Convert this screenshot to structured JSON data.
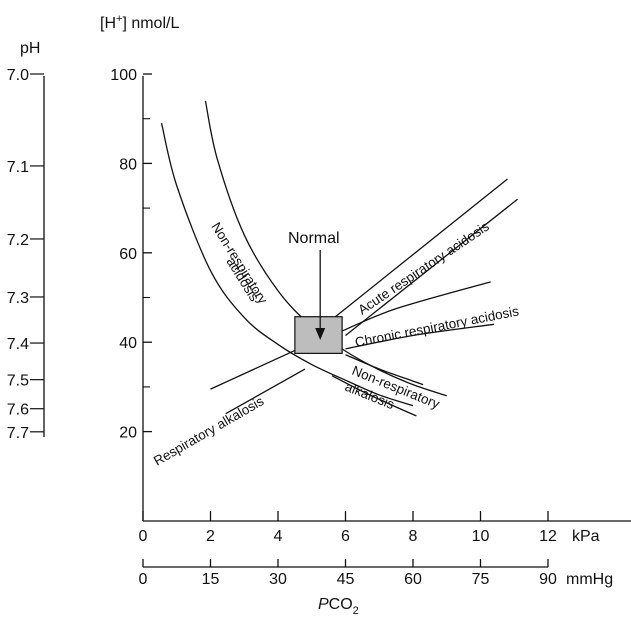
{
  "chart_data": {
    "type": "diagram-chart",
    "x_axes": {
      "primary": {
        "unit": "kPa",
        "range": [
          0,
          12
        ],
        "ticks": [
          0,
          2,
          4,
          6,
          8,
          10,
          12
        ],
        "labels": [
          "0",
          "2",
          "4",
          "6",
          "8",
          "10",
          "12"
        ]
      },
      "secondary": {
        "unit": "mmHg",
        "range": [
          0,
          90
        ],
        "ticks": [
          0,
          15,
          30,
          45,
          60,
          75,
          90
        ],
        "labels": [
          "0",
          "15",
          "30",
          "45",
          "60",
          "75",
          "90"
        ]
      },
      "title_main": "P",
      "title_rest": "CO",
      "title_sub": "2"
    },
    "y_axis": {
      "label_prefix": "[H",
      "label_sup": "+",
      "label_suffix": "] nmol/L",
      "range": [
        0,
        100
      ],
      "ticks": [
        20,
        40,
        60,
        80,
        100
      ],
      "minor_ticks": [
        30,
        50,
        70,
        90
      ],
      "labels": [
        "20",
        "40",
        "60",
        "80",
        "100"
      ]
    },
    "ph_scale": {
      "title": "pH",
      "values": [
        7.0,
        7.1,
        7.2,
        7.3,
        7.4,
        7.5,
        7.6,
        7.7
      ],
      "labels": [
        "7.0",
        "7.1",
        "7.2",
        "7.3",
        "7.4",
        "7.5",
        "7.6",
        "7.7"
      ]
    },
    "normal_box": {
      "label": "Normal",
      "x_range": [
        4.5,
        5.9
      ],
      "y_range": [
        37.5,
        45.7
      ],
      "arrow_to": [
        5.25,
        40.5
      ]
    },
    "bands": [
      {
        "label": "Non-respiratory acidosis",
        "line_labels": [
          "Non-respiratory",
          "acidosis"
        ],
        "lines": [
          [
            [
              0.55,
              89
            ],
            [
              1.0,
              75
            ],
            [
              2.0,
              56
            ],
            [
              3.0,
              45.5
            ],
            [
              4.0,
              39.5
            ],
            [
              5.0,
              35
            ],
            [
              6.0,
              31.5
            ],
            [
              7.0,
              28.2
            ],
            [
              8.0,
              25.8
            ]
          ],
          [
            [
              1.85,
              94
            ],
            [
              2.2,
              81
            ],
            [
              3.0,
              64
            ],
            [
              4.0,
              51.5
            ],
            [
              5.0,
              43.5
            ],
            [
              6.0,
              38
            ],
            [
              7.0,
              33.8
            ],
            [
              8.0,
              30.5
            ],
            [
              9.0,
              28
            ]
          ]
        ]
      },
      {
        "label": "Acute respiratory acidosis",
        "line_labels": [
          "Acute respiratory acidosis"
        ],
        "lines": [
          [
            [
              5.5,
              44.5
            ],
            [
              10.8,
              76.5
            ]
          ],
          [
            [
              6.0,
              41.5
            ],
            [
              11.1,
              72
            ]
          ]
        ]
      },
      {
        "label": "Chronic respiratory acidosis",
        "line_labels": [
          "Chronic respiratory acidosis"
        ],
        "lines": [
          [
            [
              5.9,
              42.5
            ],
            [
              7.5,
              47.5
            ],
            [
              10.3,
              53.5
            ]
          ],
          [
            [
              6.0,
              38.5
            ],
            [
              8.0,
              41.5
            ],
            [
              10.4,
              44
            ]
          ]
        ]
      },
      {
        "label": "Non-respiratory alkalosis",
        "line_labels": [
          "Non-respiratory",
          "alkalosis"
        ],
        "lines": [
          [
            [
              6.0,
              37.2
            ],
            [
              7.0,
              34
            ],
            [
              8.0,
              31.3
            ],
            [
              8.3,
              30.5
            ]
          ],
          [
            [
              5.6,
              32.5
            ],
            [
              6.5,
              29
            ],
            [
              7.5,
              25.5
            ],
            [
              8.1,
              23.5
            ]
          ]
        ]
      },
      {
        "label": "Respiratory alkalosis",
        "line_labels": [
          "Respiratory alkalosis"
        ],
        "lines": [
          [
            [
              2.0,
              29.5
            ],
            [
              4.6,
              38.5
            ]
          ],
          [
            [
              2.45,
              24
            ],
            [
              4.8,
              34
            ]
          ]
        ]
      }
    ]
  }
}
